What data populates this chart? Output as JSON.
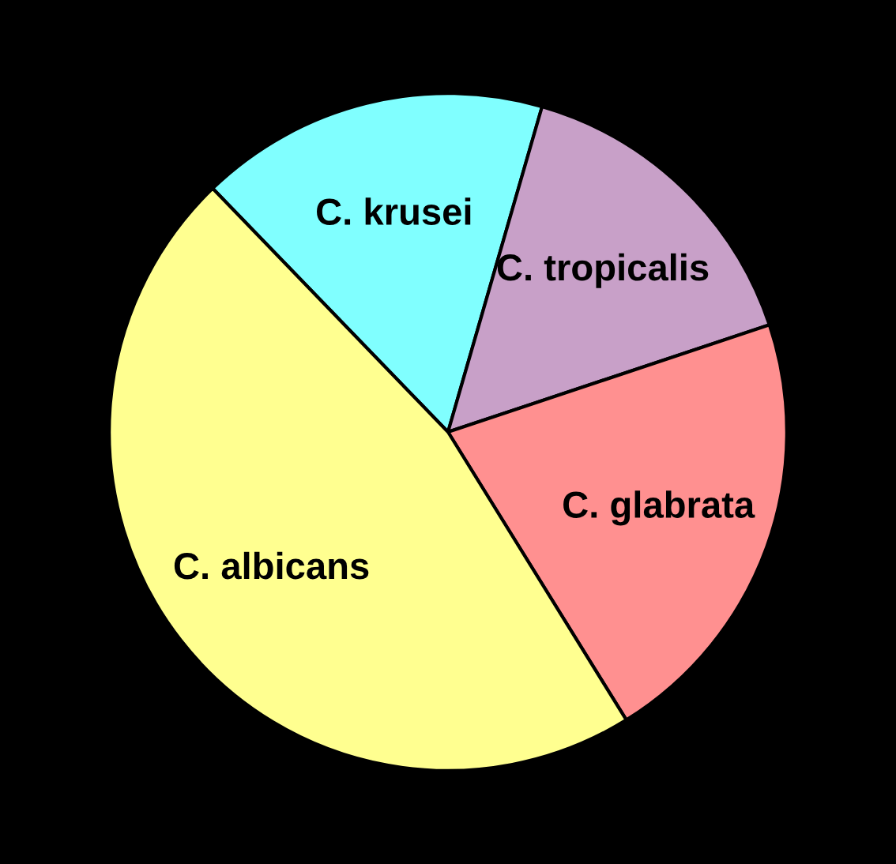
{
  "chart_data": {
    "type": "pie",
    "categories": [
      "C. krusei",
      "C. tropicalis",
      "C. glabrata",
      "C. albicans"
    ],
    "values": [
      16.7,
      15.4,
      21.3,
      46.6
    ],
    "colors": [
      "#80ffff",
      "#c8a0c8",
      "#ff9090",
      "#ffff90"
    ],
    "legend": false
  }
}
